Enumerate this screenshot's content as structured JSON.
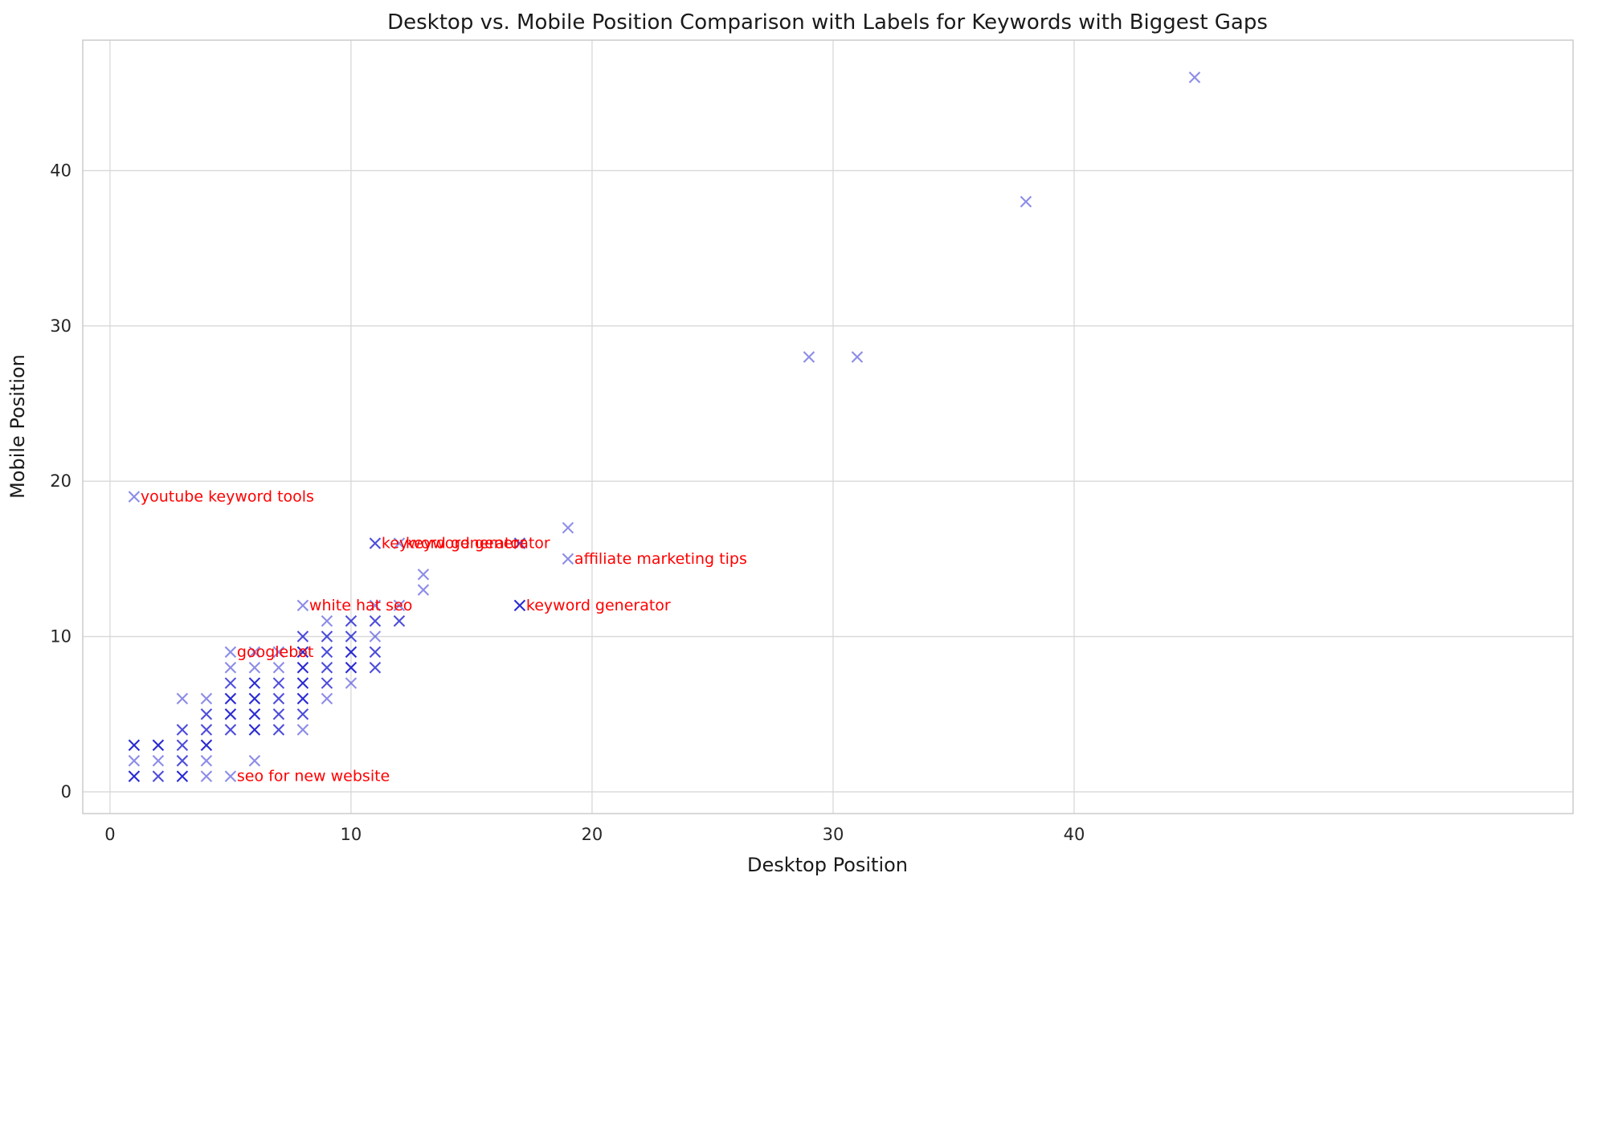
{
  "chart_data": {
    "type": "scatter",
    "title": "Desktop vs. Mobile Position Comparison with Labels for Keywords with Biggest Gaps",
    "xlabel": "Desktop Position",
    "ylabel": "Mobile Position",
    "xlim": [
      -1.13,
      60.7
    ],
    "ylim": [
      -1.4,
      48.4
    ],
    "xticks": [
      0,
      10,
      20,
      30,
      40
    ],
    "yticks": [
      0,
      10,
      20,
      30,
      40
    ],
    "grid": true,
    "legend": "none",
    "marker": "x",
    "marker_color": "#0000cc",
    "annotation_color": "#ff0000",
    "grid_color": "#d8d8d8",
    "spine_color": "#cccccc",
    "tick_label_color": "#262626",
    "points": [
      [
        1,
        1,
        3
      ],
      [
        2,
        1,
        2
      ],
      [
        3,
        1,
        3
      ],
      [
        4,
        1,
        1
      ],
      [
        5,
        1,
        1
      ],
      [
        1,
        2,
        1
      ],
      [
        2,
        2,
        1
      ],
      [
        3,
        2,
        2
      ],
      [
        4,
        2,
        1
      ],
      [
        6,
        2,
        1
      ],
      [
        1,
        3,
        3
      ],
      [
        2,
        3,
        3
      ],
      [
        3,
        3,
        2
      ],
      [
        4,
        3,
        3
      ],
      [
        3,
        4,
        2
      ],
      [
        4,
        4,
        2
      ],
      [
        5,
        4,
        2
      ],
      [
        6,
        4,
        3
      ],
      [
        7,
        4,
        2
      ],
      [
        8,
        4,
        1
      ],
      [
        4,
        5,
        2
      ],
      [
        5,
        5,
        3
      ],
      [
        6,
        5,
        3
      ],
      [
        7,
        5,
        2
      ],
      [
        8,
        5,
        2
      ],
      [
        3,
        6,
        1
      ],
      [
        4,
        6,
        1
      ],
      [
        5,
        6,
        3
      ],
      [
        6,
        6,
        3
      ],
      [
        7,
        6,
        2
      ],
      [
        8,
        6,
        3
      ],
      [
        9,
        6,
        1
      ],
      [
        5,
        7,
        2
      ],
      [
        6,
        7,
        3
      ],
      [
        7,
        7,
        2
      ],
      [
        8,
        7,
        3
      ],
      [
        9,
        7,
        2
      ],
      [
        10,
        7,
        1
      ],
      [
        5,
        8,
        1
      ],
      [
        6,
        8,
        1
      ],
      [
        7,
        8,
        1
      ],
      [
        8,
        8,
        3
      ],
      [
        9,
        8,
        2
      ],
      [
        10,
        8,
        3
      ],
      [
        11,
        8,
        2
      ],
      [
        5,
        9,
        1
      ],
      [
        6,
        9,
        1
      ],
      [
        7,
        9,
        1
      ],
      [
        8,
        9,
        3
      ],
      [
        9,
        9,
        2
      ],
      [
        10,
        9,
        3
      ],
      [
        11,
        9,
        2
      ],
      [
        8,
        10,
        2
      ],
      [
        9,
        10,
        2
      ],
      [
        10,
        10,
        2
      ],
      [
        11,
        10,
        1
      ],
      [
        9,
        11,
        1
      ],
      [
        10,
        11,
        2
      ],
      [
        11,
        11,
        2
      ],
      [
        12,
        11,
        2
      ],
      [
        8,
        12,
        1
      ],
      [
        11,
        12,
        1
      ],
      [
        12,
        12,
        1
      ],
      [
        17,
        12,
        3
      ],
      [
        13,
        13,
        1
      ],
      [
        13,
        14,
        1
      ],
      [
        19,
        15,
        1
      ],
      [
        11,
        16,
        2
      ],
      [
        12,
        16,
        1
      ],
      [
        17,
        16,
        2
      ],
      [
        19,
        17,
        1
      ],
      [
        1,
        19,
        1
      ],
      [
        29,
        28,
        1
      ],
      [
        31,
        28,
        1
      ],
      [
        38,
        38,
        1
      ],
      [
        45,
        46,
        1
      ]
    ],
    "annotations": [
      {
        "text": "youtube keyword tools",
        "x": 1,
        "y": 19
      },
      {
        "text": "keyword generator",
        "x": 11,
        "y": 16
      },
      {
        "text": "keyword generator",
        "x": 12,
        "y": 16
      },
      {
        "text": "affiliate marketing tips",
        "x": 19,
        "y": 15
      },
      {
        "text": "white hat seo",
        "x": 8,
        "y": 12
      },
      {
        "text": "keyword generator",
        "x": 17,
        "y": 12
      },
      {
        "text": "googlebot",
        "x": 5,
        "y": 9
      },
      {
        "text": "seo for new website",
        "x": 5,
        "y": 1
      }
    ]
  }
}
